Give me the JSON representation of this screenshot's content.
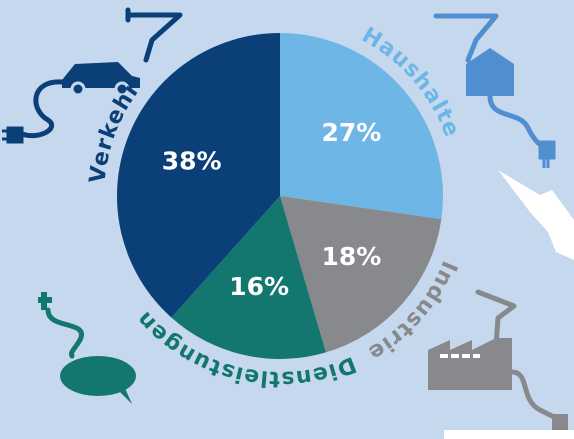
{
  "chart_data": {
    "type": "pie",
    "categories": [
      "Haushalte",
      "Industrie",
      "Dienstleistungen",
      "Verkehr"
    ],
    "values": [
      27,
      18,
      16,
      38
    ],
    "value_labels": [
      "27%",
      "18%",
      "16%",
      "38%"
    ],
    "colors": [
      "#6db6e6",
      "#88898c",
      "#13766f",
      "#0b3f78"
    ]
  }
}
